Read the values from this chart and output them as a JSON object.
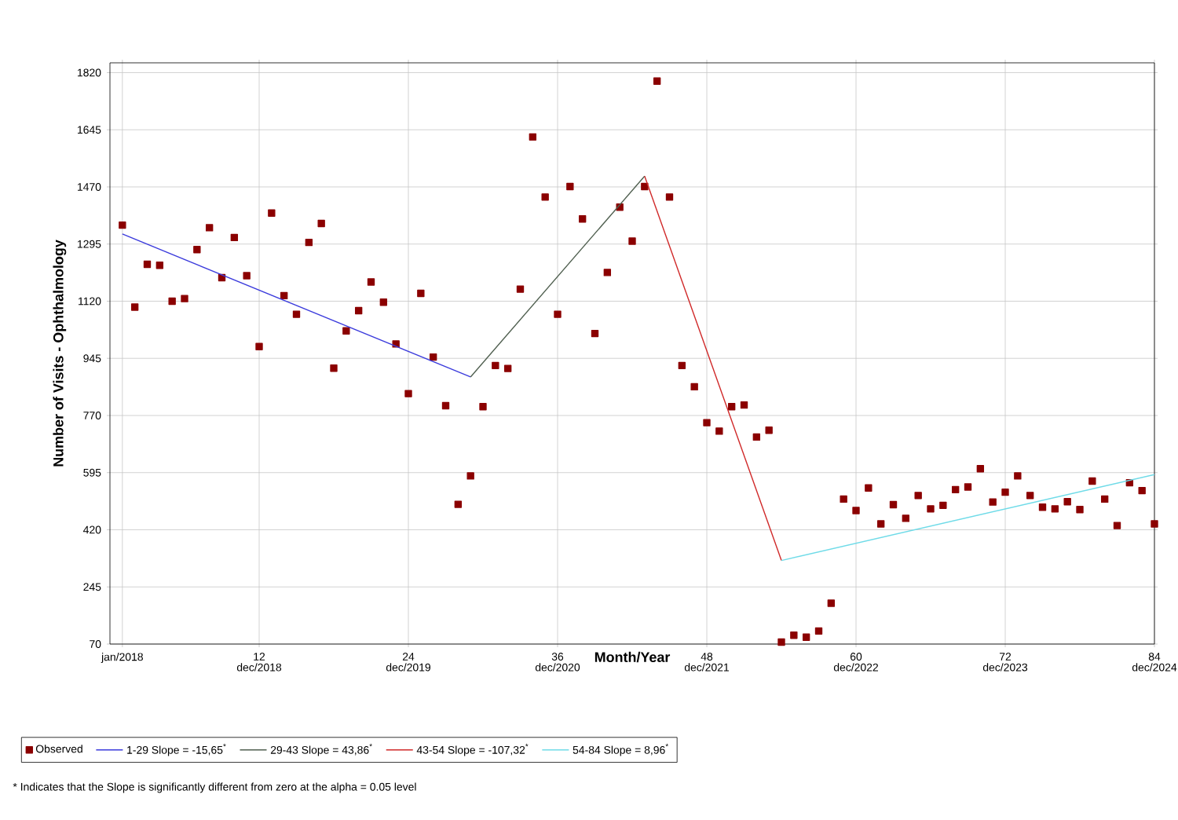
{
  "chart_data": {
    "type": "scatter",
    "xlabel": "Month/Year",
    "ylabel": "Number of Visits - Ophthalmology",
    "xlim": [
      0,
      84
    ],
    "ylim": [
      70,
      1850
    ],
    "xticks": [
      {
        "value": 1,
        "label": "jan/2018"
      },
      12,
      24,
      36,
      48,
      60,
      72,
      84
    ],
    "yticks": [
      70,
      245,
      420,
      595,
      770,
      945,
      1120,
      1295,
      1470,
      1645,
      1820
    ],
    "grid": true,
    "legend": "bottom",
    "series": [
      {
        "name": "Observed",
        "marker": "square",
        "color": "#8b0000",
        "x": [
          1,
          2,
          3,
          4,
          5,
          6,
          7,
          8,
          9,
          10,
          11,
          12,
          13,
          14,
          15,
          16,
          17,
          18,
          19,
          20,
          21,
          22,
          23,
          24,
          25,
          26,
          27,
          28,
          29,
          30,
          31,
          32,
          33,
          34,
          35,
          36,
          37,
          38,
          39,
          40,
          41,
          42,
          43,
          44,
          45,
          46,
          47,
          48,
          49,
          50,
          51,
          52,
          53,
          54,
          55,
          56,
          57,
          58,
          59,
          60,
          61,
          62,
          63,
          64,
          65,
          66,
          67,
          68,
          69,
          70,
          71,
          72,
          73,
          74,
          75,
          76,
          77,
          78,
          79,
          80,
          81,
          82,
          83,
          84
        ],
        "values": [
          1353,
          1102,
          1233,
          1230,
          1120,
          1128,
          1278,
          1345,
          1192,
          1315,
          1198,
          981,
          1390,
          1137,
          1080,
          1300,
          1358,
          915,
          1029,
          1091,
          1179,
          1117,
          989,
          837,
          1144,
          949,
          800,
          498,
          585,
          797,
          923,
          914,
          1157,
          1623,
          1439,
          1080,
          1471,
          1372,
          1021,
          1208,
          1408,
          1304,
          1471,
          1794,
          1439,
          923,
          858,
          748,
          722,
          797,
          802,
          704,
          725,
          76,
          97,
          91,
          110,
          195,
          514,
          479,
          548,
          438,
          497,
          455,
          525,
          484,
          495,
          543,
          551,
          607,
          505,
          535,
          585,
          525,
          489,
          484,
          506,
          482,
          569,
          514,
          433,
          564,
          540,
          438
        ]
      },
      {
        "name": "1-29 Slope =  -15,65$^{*}$",
        "type": "line",
        "color": "#3b3bdc",
        "x": [
          1,
          29
        ],
        "values": [
          1326,
          888
        ]
      },
      {
        "name": "29-43 Slope =  43,86$^{*}$",
        "type": "line",
        "color": "#4f5f4f",
        "x": [
          29,
          43
        ],
        "values": [
          888,
          1503
        ]
      },
      {
        "name": "43-54 Slope =  -107,32$^{*}$",
        "type": "line",
        "color": "#d02828",
        "x": [
          43,
          54
        ],
        "values": [
          1503,
          326
        ]
      },
      {
        "name": "54-84 Slope =  8,96$^{*}$",
        "type": "line",
        "color": "#6fdbe8",
        "x": [
          54,
          84
        ],
        "values": [
          326,
          589
        ]
      }
    ],
    "annotations": [
      "dec/2018",
      "dec/2019",
      "dec/2020",
      "dec/2021",
      "dec/2022",
      "dec/2023",
      "dec/2024",
      "* Indicates that the Slope is significantly different from zero at the alpha = 0.05 level"
    ]
  }
}
